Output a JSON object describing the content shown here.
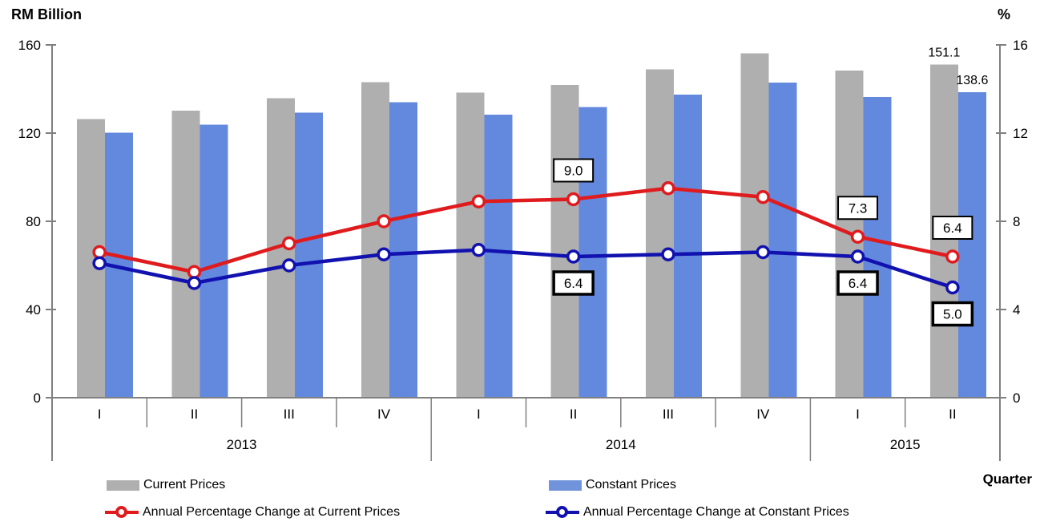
{
  "chart": {
    "left_axis_title": "RM Billion",
    "right_axis_title": "%",
    "x_axis_title": "Quarter"
  },
  "colors": {
    "bar_current": "#AFAFAF",
    "bar_constant": "#6389DE",
    "line_current": "#E01B1E",
    "line_constant": "#1111B0",
    "axis": "#808080",
    "text": "#000000"
  },
  "chart_data": {
    "type": "bar",
    "subtype": "grouped-bars-with-lines",
    "title": "",
    "xlabel": "Quarter",
    "ylabel_left": "RM Billion",
    "ylabel_right": "%",
    "categories": [
      "I",
      "II",
      "III",
      "IV",
      "I",
      "II",
      "III",
      "IV",
      "I",
      "II"
    ],
    "year_groups": [
      {
        "label": "2013",
        "span": 4
      },
      {
        "label": "2014",
        "span": 4
      },
      {
        "label": "2015",
        "span": 2
      }
    ],
    "left_axis": {
      "min": 0,
      "max": 160,
      "ticks": [
        0,
        40,
        80,
        120,
        160
      ]
    },
    "right_axis": {
      "min": 0,
      "max": 16,
      "ticks": [
        0,
        4,
        8,
        12,
        16
      ]
    },
    "grid": "off",
    "legend_position": "bottom",
    "bar_series": [
      {
        "name": "Current Prices",
        "color": "#AFAFAF",
        "axis": "left",
        "values": [
          126.3,
          130.2,
          135.8,
          143.1,
          138.3,
          141.9,
          148.9,
          156.1,
          148.3,
          151.1
        ]
      },
      {
        "name": "Constant Prices",
        "color": "#6389DE",
        "axis": "left",
        "values": [
          120.2,
          123.9,
          129.2,
          134.0,
          128.4,
          131.8,
          137.4,
          143.0,
          136.3,
          138.6
        ]
      }
    ],
    "line_series": [
      {
        "name": "Annual Percentage Change at Current Prices",
        "color": "#E01B1E",
        "axis": "right",
        "values": [
          6.6,
          5.7,
          7.0,
          8.0,
          8.9,
          9.0,
          9.5,
          9.1,
          7.3,
          6.4
        ]
      },
      {
        "name": "Annual Percentage Change at Constant Prices",
        "color": "#1111B0",
        "axis": "right",
        "values": [
          6.1,
          5.2,
          6.0,
          6.5,
          6.7,
          6.4,
          6.5,
          6.6,
          6.4,
          5.0
        ]
      }
    ],
    "bar_labels": [
      {
        "series": 0,
        "index": 9,
        "text": "151.1"
      },
      {
        "series": 1,
        "index": 9,
        "text": "138.6"
      }
    ],
    "point_labels": [
      {
        "series": 0,
        "index": 5,
        "text": "9.0",
        "style": "thin",
        "position": "above"
      },
      {
        "series": 1,
        "index": 5,
        "text": "6.4",
        "style": "bold",
        "position": "below"
      },
      {
        "series": 0,
        "index": 8,
        "text": "7.3",
        "style": "thin",
        "position": "above"
      },
      {
        "series": 1,
        "index": 8,
        "text": "6.4",
        "style": "bold",
        "position": "below"
      },
      {
        "series": 0,
        "index": 9,
        "text": "6.4",
        "style": "thin",
        "position": "above"
      },
      {
        "series": 1,
        "index": 9,
        "text": "5.0",
        "style": "bold",
        "position": "below"
      }
    ]
  },
  "legend": {
    "items": [
      {
        "label": "Current Prices",
        "type": "bar",
        "color": "#AFAFAF"
      },
      {
        "label": "Constant Prices",
        "type": "bar",
        "color": "#6389DE"
      },
      {
        "label": "Annual Percentage Change at Current Prices",
        "type": "line",
        "color": "#E01B1E"
      },
      {
        "label": "Annual Percentage Change at Constant Prices",
        "type": "line",
        "color": "#1111B0"
      }
    ]
  }
}
